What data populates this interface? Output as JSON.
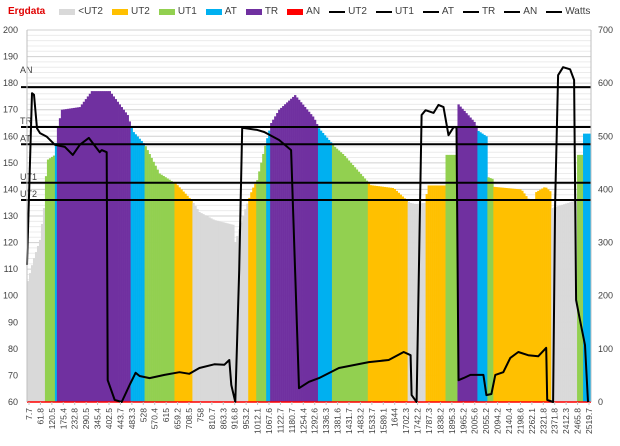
{
  "chart_data": {
    "type": "bar+line",
    "title": "Ergdata",
    "legend": {
      "placement": "top",
      "entries": [
        {
          "name": "<UT2",
          "kind": "bar",
          "color": "#d9d9d9"
        },
        {
          "name": "UT2",
          "kind": "bar",
          "color": "#ffc000"
        },
        {
          "name": "UT1",
          "kind": "bar",
          "color": "#92d050"
        },
        {
          "name": "AT",
          "kind": "bar",
          "color": "#00b0f0"
        },
        {
          "name": "TR",
          "kind": "bar",
          "color": "#7030a0"
        },
        {
          "name": "AN",
          "kind": "bar",
          "color": "#ff0000"
        },
        {
          "name": "UT2",
          "kind": "line",
          "color": "#000000"
        },
        {
          "name": "UT1",
          "kind": "line",
          "color": "#000000"
        },
        {
          "name": "AT",
          "kind": "line",
          "color": "#000000"
        },
        {
          "name": "TR",
          "kind": "line",
          "color": "#000000"
        },
        {
          "name": "AN",
          "kind": "line",
          "color": "#000000"
        },
        {
          "name": "Watts",
          "kind": "line",
          "color": "#000000"
        }
      ]
    },
    "y_left": {
      "range": [
        60,
        200
      ],
      "ticks": [
        "200",
        "190",
        "180",
        "170",
        "160",
        "150",
        "140",
        "130",
        "120",
        "110",
        "100",
        "90",
        "80",
        "70",
        "60"
      ]
    },
    "y_right": {
      "range": [
        0,
        700
      ],
      "ticks": [
        "700",
        "600",
        "500",
        "400",
        "300",
        "200",
        "100",
        "0"
      ]
    },
    "x_ticks": [
      "7.7",
      "61.8",
      "120.5",
      "175.4",
      "232.8",
      "290.5",
      "345.4",
      "402.5",
      "443.7",
      "483.3",
      "528",
      "570.4",
      "615",
      "659.2",
      "708.5",
      "758",
      "810.7",
      "863.3",
      "916.8",
      "953.2",
      "1012.1",
      "1067.6",
      "1122.7",
      "1180.7",
      "1254.4",
      "1292.6",
      "1336.3",
      "1381.6",
      "1431.7",
      "1483.2",
      "1533.7",
      "1589.1",
      "1644",
      "1702.3",
      "1742.2",
      "1787.3",
      "1838.2",
      "1895.3",
      "1965.2",
      "2005.6",
      "2055.2",
      "2094.2",
      "2140.4",
      "2198.6",
      "2262.1",
      "2321.8",
      "2371.8",
      "2412.3",
      "2465.8",
      "2519.7"
    ],
    "samples": 283,
    "thresholds": [
      {
        "name": "AN",
        "value": 178.5
      },
      {
        "name": "TR",
        "value": 163.5
      },
      {
        "name": "AT",
        "value": 157
      },
      {
        "name": "UT1",
        "value": 142.5
      },
      {
        "name": "UT2",
        "value": 136
      }
    ],
    "zone_colors": {
      "<UT2": "#d9d9d9",
      "UT2": "#ffc000",
      "UT1": "#92d050",
      "AT": "#00b0f0",
      "TR": "#7030a0",
      "AN": "#ff0000"
    },
    "heart_rate_keypoints": [
      [
        0,
        104
      ],
      [
        3,
        113
      ],
      [
        6.5,
        121
      ],
      [
        8.5,
        133
      ],
      [
        10,
        151
      ],
      [
        14,
        153
      ],
      [
        15,
        162
      ],
      [
        17.5,
        170
      ],
      [
        26.5,
        171
      ],
      [
        32.5,
        177
      ],
      [
        41.5,
        177
      ],
      [
        50.5,
        168
      ],
      [
        53,
        162
      ],
      [
        59,
        157
      ],
      [
        66.5,
        146
      ],
      [
        75,
        142
      ],
      [
        82.5,
        136
      ],
      [
        86.5,
        131.5
      ],
      [
        94,
        128.5
      ],
      [
        104,
        126.6
      ],
      [
        104.5,
        120
      ],
      [
        106.5,
        125
      ],
      [
        109,
        131.5
      ],
      [
        113,
        140
      ],
      [
        115.5,
        143.5
      ],
      [
        119,
        155
      ],
      [
        122.5,
        165
      ],
      [
        126.5,
        170
      ],
      [
        134.5,
        175.5
      ],
      [
        144,
        167
      ],
      [
        146.5,
        163
      ],
      [
        154.5,
        156
      ],
      [
        159,
        153
      ],
      [
        172.5,
        141.6
      ],
      [
        184,
        140.5
      ],
      [
        189,
        137
      ],
      [
        192,
        135
      ],
      [
        195,
        134.5
      ],
      [
        200,
        135
      ],
      [
        201,
        141.5
      ],
      [
        210,
        141.5
      ],
      [
        210.5,
        153
      ],
      [
        216,
        153
      ],
      [
        216.5,
        172
      ],
      [
        225,
        165
      ],
      [
        226.5,
        162
      ],
      [
        230.5,
        160
      ],
      [
        231,
        144.7
      ],
      [
        233.5,
        144
      ],
      [
        234,
        141
      ],
      [
        248,
        140
      ],
      [
        252,
        136
      ],
      [
        255,
        136
      ],
      [
        255.5,
        139
      ],
      [
        260,
        141
      ],
      [
        263,
        139
      ],
      [
        263.5,
        133
      ],
      [
        276,
        136
      ],
      [
        276.5,
        153
      ],
      [
        278.5,
        153
      ],
      [
        279,
        161
      ],
      [
        282,
        161
      ]
    ],
    "watts_keypoints": [
      [
        0,
        258
      ],
      [
        2.5,
        581
      ],
      [
        3.5,
        578
      ],
      [
        5,
        515
      ],
      [
        6.5,
        506
      ],
      [
        10,
        499
      ],
      [
        14,
        484
      ],
      [
        19,
        480
      ],
      [
        23,
        465
      ],
      [
        26.5,
        484
      ],
      [
        31,
        497
      ],
      [
        36.5,
        470
      ],
      [
        37.5,
        474
      ],
      [
        40,
        470
      ],
      [
        40.5,
        41
      ],
      [
        44,
        4
      ],
      [
        47.5,
        0
      ],
      [
        51.5,
        32
      ],
      [
        54.5,
        55
      ],
      [
        56.5,
        49
      ],
      [
        61.5,
        45
      ],
      [
        69,
        51
      ],
      [
        76.5,
        56
      ],
      [
        81.5,
        53
      ],
      [
        86.5,
        64
      ],
      [
        94,
        71
      ],
      [
        99,
        70
      ],
      [
        101.5,
        79
      ],
      [
        102.5,
        32
      ],
      [
        104.5,
        0
      ],
      [
        106.5,
        248
      ],
      [
        108,
        516
      ],
      [
        115.5,
        512
      ],
      [
        119,
        508
      ],
      [
        126.5,
        493
      ],
      [
        132.5,
        474
      ],
      [
        136.5,
        26
      ],
      [
        141.5,
        38
      ],
      [
        146.5,
        45
      ],
      [
        156.5,
        64
      ],
      [
        171.5,
        75
      ],
      [
        181.5,
        79
      ],
      [
        189,
        94
      ],
      [
        192.5,
        88
      ],
      [
        193,
        13
      ],
      [
        195.5,
        0
      ],
      [
        198,
        540
      ],
      [
        200,
        549
      ],
      [
        204,
        544
      ],
      [
        206.5,
        559
      ],
      [
        209,
        555
      ],
      [
        211.5,
        502
      ],
      [
        214,
        517
      ],
      [
        215.5,
        517
      ],
      [
        216.5,
        41
      ],
      [
        219,
        45
      ],
      [
        222.5,
        51
      ],
      [
        229,
        51
      ],
      [
        230.5,
        13
      ],
      [
        233,
        15
      ],
      [
        235,
        51
      ],
      [
        239,
        56
      ],
      [
        242.5,
        83
      ],
      [
        246.5,
        94
      ],
      [
        251.5,
        88
      ],
      [
        256.5,
        86
      ],
      [
        260.5,
        102
      ],
      [
        261,
        4
      ],
      [
        264,
        0
      ],
      [
        265,
        371
      ],
      [
        266.5,
        615
      ],
      [
        269,
        630
      ],
      [
        272.5,
        626
      ],
      [
        274.5,
        606
      ],
      [
        275.5,
        192
      ],
      [
        277.5,
        154
      ],
      [
        280,
        107
      ],
      [
        281.5,
        0
      ]
    ]
  }
}
